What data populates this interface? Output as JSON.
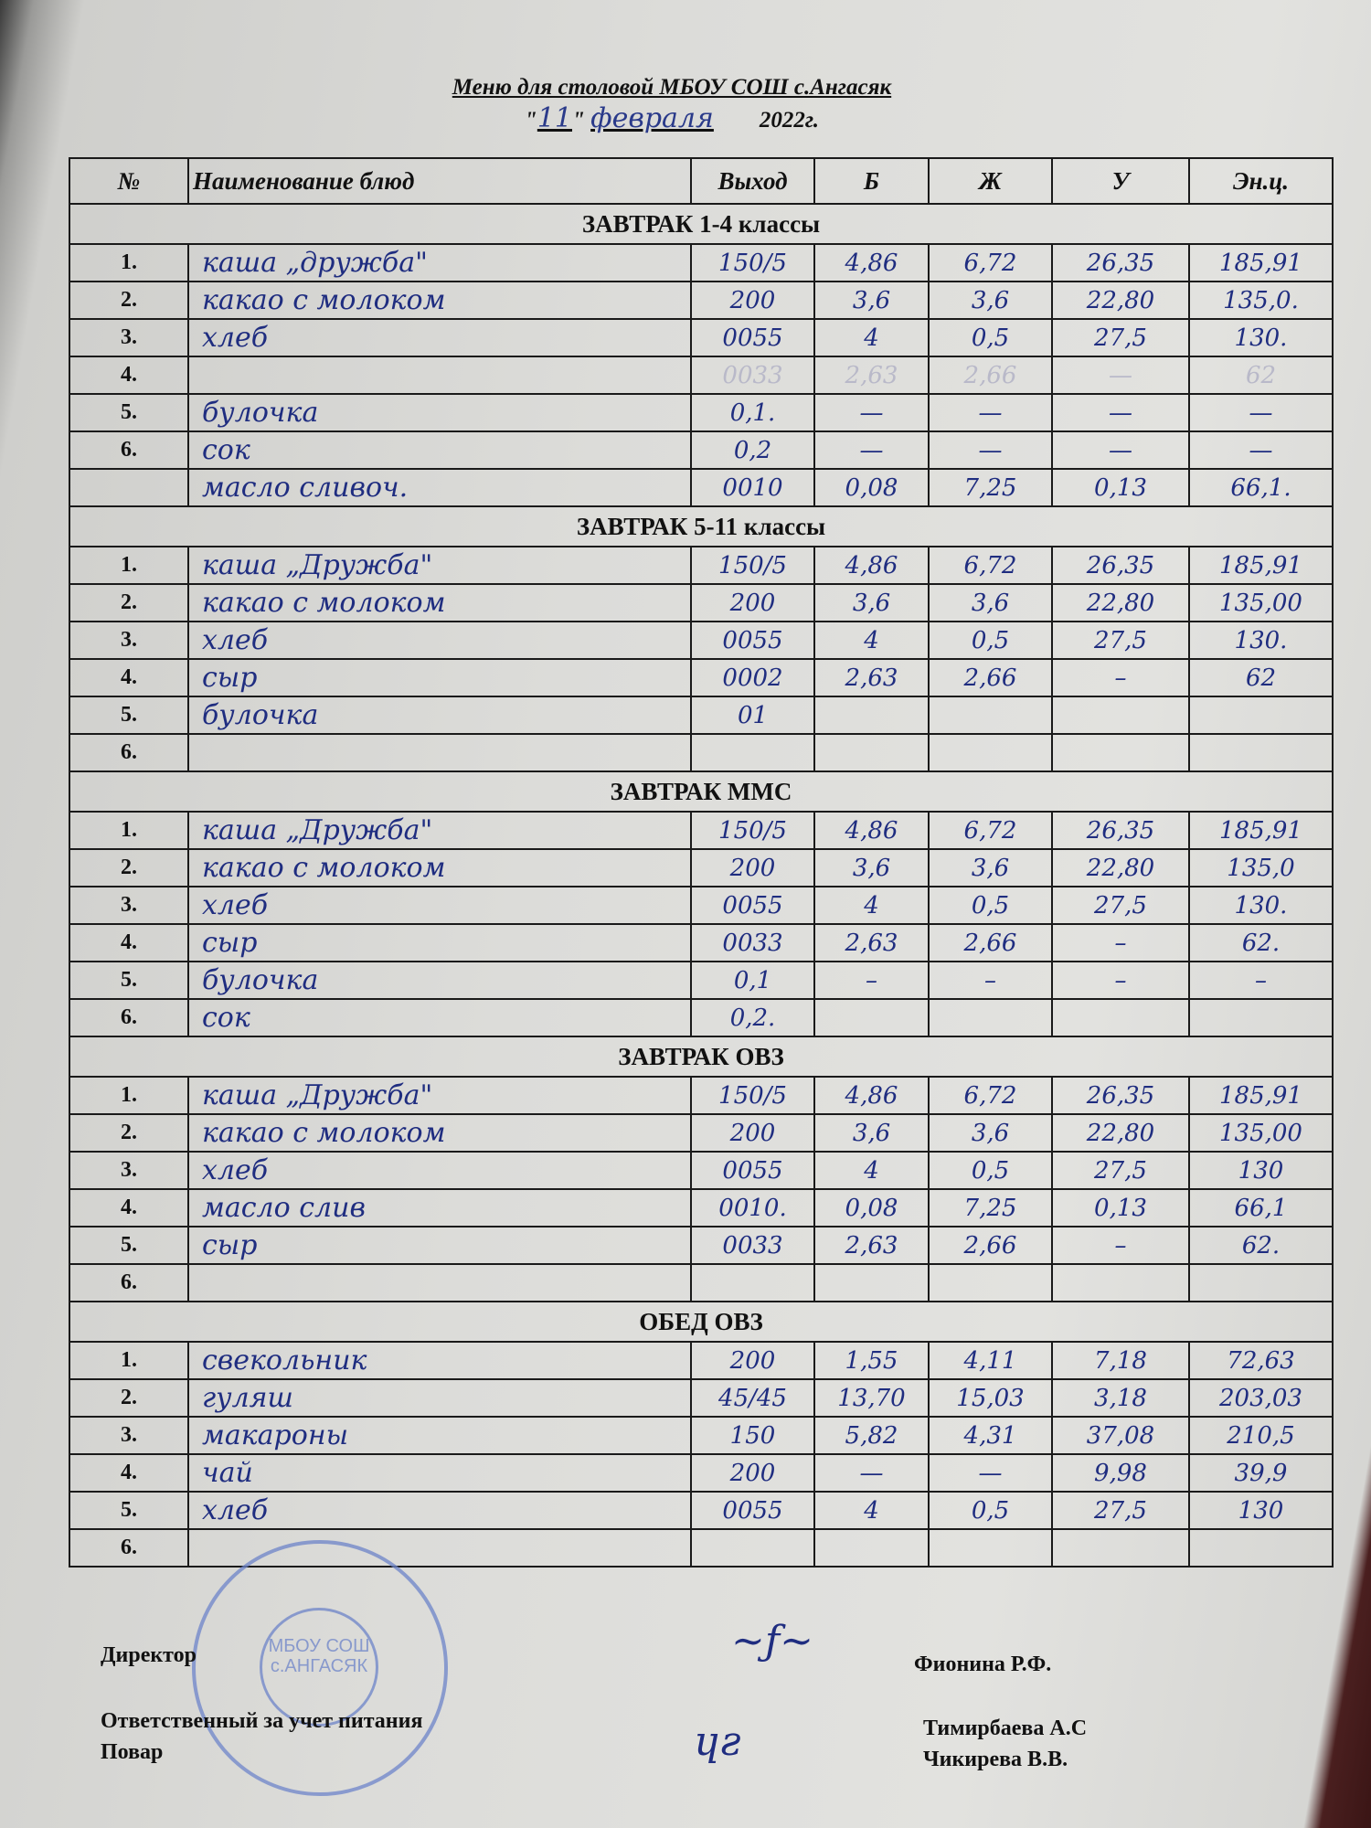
{
  "header": {
    "title": "Меню для столовой МБОУ СОШ с.Ангасяк",
    "date_day": "11",
    "date_month": "февраля",
    "date_year": "2022г."
  },
  "columns": [
    "№",
    "Наименование блюд",
    "Выход",
    "Б",
    "Ж",
    "У",
    "Эн.ц."
  ],
  "sections": [
    {
      "title": "ЗАВТРАК 1-4 классы",
      "rows": [
        [
          "1.",
          "каша „дружба\"",
          "150/5",
          "4,86",
          "6,72",
          "26,35",
          "185,91"
        ],
        [
          "2.",
          "какао с молоком",
          "200",
          "3,6",
          "3,6",
          "22,80",
          "135,0."
        ],
        [
          "3.",
          "хлеб",
          "0055",
          "4",
          "0,5",
          "27,5",
          "130."
        ],
        [
          "4.",
          "",
          "0033",
          "2,63",
          "2,66",
          "—",
          "62"
        ],
        [
          "5.",
          "булочка",
          "0,1.",
          "—",
          "—",
          "—",
          "—"
        ],
        [
          "6.",
          "сок",
          "0,2",
          "—",
          "—",
          "—",
          "—"
        ]
      ],
      "extra": [
        "",
        "масло сливоч.",
        "0010",
        "0,08",
        "7,25",
        "0,13",
        "66,1."
      ]
    },
    {
      "title": "ЗАВТРАК 5-11 классы",
      "rows": [
        [
          "1.",
          "каша „Дружба\"",
          "150/5",
          "4,86",
          "6,72",
          "26,35",
          "185,91"
        ],
        [
          "2.",
          "какао с молоком",
          "200",
          "3,6",
          "3,6",
          "22,80",
          "135,00"
        ],
        [
          "3.",
          "хлеб",
          "0055",
          "4",
          "0,5",
          "27,5",
          "130."
        ],
        [
          "4.",
          "сыр",
          "0002",
          "2,63",
          "2,66",
          "–",
          "62"
        ],
        [
          "5.",
          "булочка",
          "01",
          "",
          "",
          "",
          ""
        ],
        [
          "6.",
          "",
          "",
          "",
          "",
          "",
          ""
        ]
      ]
    },
    {
      "title": "ЗАВТРАК  ММС",
      "rows": [
        [
          "1.",
          "каша „Дружба\"",
          "150/5",
          "4,86",
          "6,72",
          "26,35",
          "185,91"
        ],
        [
          "2.",
          "какао с молоком",
          "200",
          "3,6",
          "3,6",
          "22,80",
          "135,0"
        ],
        [
          "3.",
          "хлеб",
          "0055",
          "4",
          "0,5",
          "27,5",
          "130."
        ],
        [
          "4.",
          "сыр",
          "0033",
          "2,63",
          "2,66",
          "–",
          "62."
        ],
        [
          "5.",
          "булочка",
          "0,1",
          "–",
          "–",
          "–",
          "–"
        ],
        [
          "6.",
          "сок",
          "0,2.",
          "",
          "",
          "",
          ""
        ]
      ]
    },
    {
      "title": "ЗАВТРАК  ОВЗ",
      "rows": [
        [
          "1.",
          "каша „Дружба\"",
          "150/5",
          "4,86",
          "6,72",
          "26,35",
          "185,91"
        ],
        [
          "2.",
          "какао с молоком",
          "200",
          "3,6",
          "3,6",
          "22,80",
          "135,00"
        ],
        [
          "3.",
          "хлеб",
          "0055",
          "4",
          "0,5",
          "27,5",
          "130"
        ],
        [
          "4.",
          "масло слив",
          "0010.",
          "0,08",
          "7,25",
          "0,13",
          "66,1"
        ],
        [
          "5.",
          "сыр",
          "0033",
          "2,63",
          "2,66",
          "–",
          "62."
        ],
        [
          "6.",
          "",
          "",
          "",
          "",
          "",
          ""
        ]
      ]
    },
    {
      "title": "ОБЕД ОВЗ",
      "rows": [
        [
          "1.",
          "свекольник",
          "200",
          "1,55",
          "4,11",
          "7,18",
          "72,63"
        ],
        [
          "2.",
          "гуляш",
          "45/45",
          "13,70",
          "15,03",
          "3,18",
          "203,03"
        ],
        [
          "3.",
          "макароны",
          "150",
          "5,82",
          "4,31",
          "37,08",
          "210,5"
        ],
        [
          "4.",
          "чай",
          "200",
          "—",
          "—",
          "9,98",
          "39,9"
        ],
        [
          "5.",
          "хлеб",
          "0055",
          "4",
          "0,5",
          "27,5",
          "130"
        ],
        [
          "6.",
          "",
          "",
          "",
          "",
          "",
          ""
        ]
      ]
    }
  ],
  "footer": {
    "director_label": "Директор",
    "director_name": "Фионина Р.Ф.",
    "responsible_label": "Ответственный за учет питания",
    "responsible_name": "Тимирбаева А.С",
    "cook_label": "Повар",
    "cook_name": "Чикирева В.В.",
    "stamp_text": "МБОУ СОШ с.АНГАСЯК"
  },
  "colors": {
    "ink": "#1f2d80",
    "stamp": "#6d84c9"
  }
}
